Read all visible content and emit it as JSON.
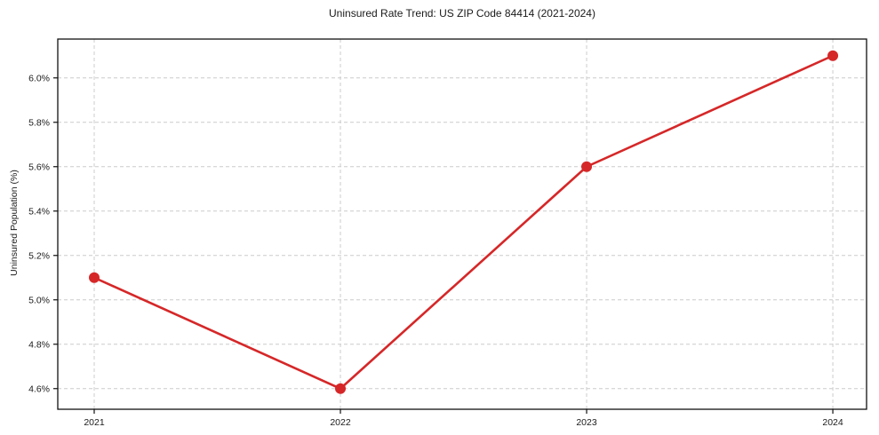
{
  "title": "Uninsured Rate Trend: US ZIP Code 84414 (2021-2024)",
  "chart_data": {
    "type": "line",
    "title": "Uninsured Rate Trend: US ZIP Code 84414 (2021-2024)",
    "xlabel": "",
    "ylabel": "Uninsured Population (%)",
    "x": [
      2021,
      2022,
      2023,
      2024
    ],
    "series": [
      {
        "name": "Uninsured rate",
        "values": [
          5.1,
          4.6,
          5.6,
          6.1
        ]
      }
    ],
    "x_tick_labels": [
      "2021",
      "2022",
      "2023",
      "2024"
    ],
    "y_ticks": [
      4.6,
      4.8,
      5.0,
      5.2,
      5.4,
      5.6,
      5.8,
      6.0
    ],
    "y_tick_labels": [
      "4.6%",
      "4.8%",
      "5.0%",
      "5.2%",
      "5.4%",
      "5.6%",
      "5.8%",
      "6.0%"
    ],
    "xlim": [
      2020.852,
      2024.137
    ],
    "ylim": [
      4.507,
      6.175
    ],
    "grid": true,
    "legend": "none",
    "line_color": "#d62728",
    "marker": "circle",
    "marker_size": 6,
    "line_width": 2.6,
    "grid_color": "#cccccc",
    "spine_color": "#111111",
    "background_color": "#ffffff"
  }
}
